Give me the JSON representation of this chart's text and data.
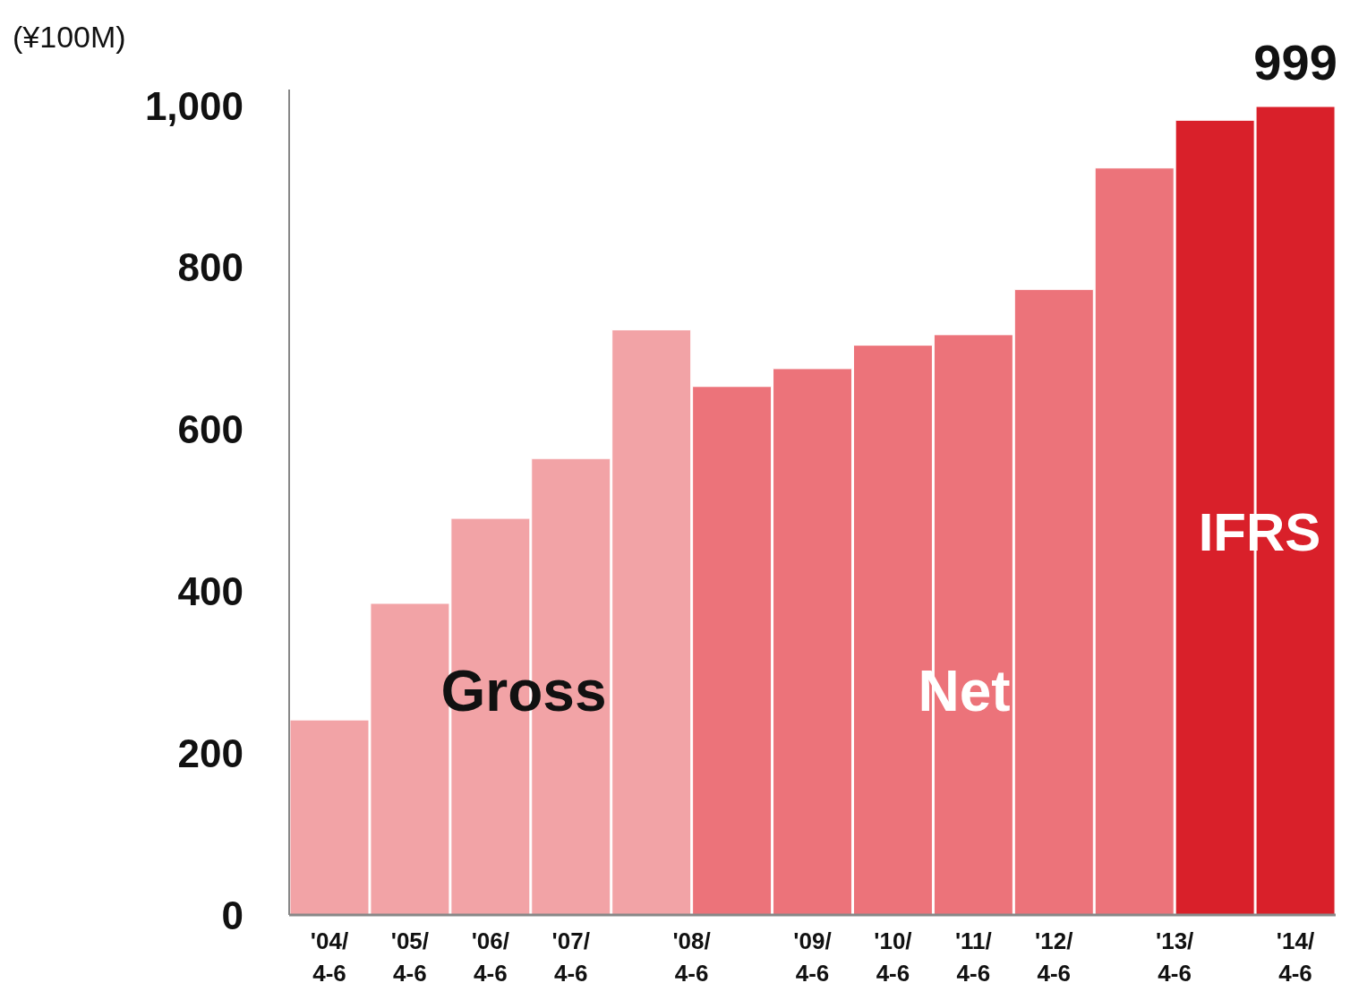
{
  "chart_data": {
    "type": "bar",
    "ylabel": "(¥100M)",
    "categories": [
      "'04/4-6",
      "'05/4-6",
      "'06/4-6",
      "'07/4-6",
      "'08/4-6",
      null,
      "'09/4-6",
      "'10/4-6",
      "'11/4-6",
      "'12/4-6",
      "'13/4-6",
      null,
      "'14/4-6"
    ],
    "values": [
      241,
      385,
      490,
      564,
      723,
      653,
      675,
      704,
      717,
      773,
      923,
      982,
      999
    ],
    "colors": [
      "#f2a3a6",
      "#f2a3a6",
      "#f2a3a6",
      "#f2a3a6",
      "#f2a3a6",
      "#ec737a",
      "#ec737a",
      "#ec737a",
      "#ec737a",
      "#ec737a",
      "#ec737a",
      "#d9202a",
      "#d9202a"
    ],
    "value_labels": [
      null,
      null,
      null,
      null,
      null,
      null,
      null,
      null,
      null,
      null,
      null,
      null,
      "999"
    ],
    "ylim": [
      0,
      1020
    ],
    "yticks": [
      0,
      200,
      400,
      600,
      800,
      {
        "value": 1000,
        "label": "1,000"
      }
    ],
    "annotations": [
      "Gross",
      "Net",
      "IFRS"
    ]
  }
}
